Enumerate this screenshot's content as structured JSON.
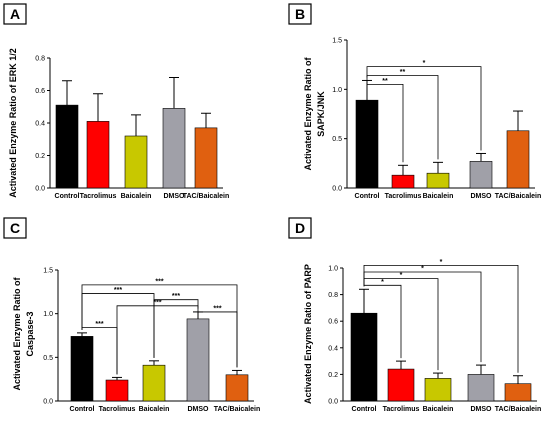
{
  "chart_data": [
    {
      "panel": "A",
      "type": "bar",
      "categories": [
        "Control",
        "Tacrolimus",
        "Baicalein",
        "DMSO",
        "TAC/Baicalein"
      ],
      "values": [
        0.51,
        0.41,
        0.32,
        0.49,
        0.37
      ],
      "errors": [
        0.15,
        0.17,
        0.13,
        0.19,
        0.09
      ],
      "colors": [
        "#000000",
        "#ff0000",
        "#c8c800",
        "#a0a0a8",
        "#e06010"
      ],
      "ylabel_lines": [
        "Activated Enzyme Ratio of ERK 1/2"
      ],
      "ylim": [
        0,
        0.8
      ],
      "yticks": [
        "0.0",
        "0.2",
        "0.4",
        "0.6",
        "0.8"
      ],
      "significance": []
    },
    {
      "panel": "B",
      "type": "bar",
      "categories": [
        "Control",
        "Tacrolimus",
        "Baicalein",
        "DMSO",
        "TAC/Baicalein"
      ],
      "values": [
        0.89,
        0.13,
        0.15,
        0.27,
        0.58
      ],
      "errors": [
        0.2,
        0.1,
        0.11,
        0.08,
        0.2
      ],
      "colors": [
        "#000000",
        "#ff0000",
        "#c8c800",
        "#a0a0a8",
        "#e06010"
      ],
      "ylabel_lines": [
        "Activated Enzyme Ratio of",
        "SAPK/JNK"
      ],
      "ylim": [
        0,
        1.5
      ],
      "yticks": [
        "0.0",
        "0.5",
        "1.0",
        "1.5"
      ],
      "significance": [
        {
          "from": 0,
          "to": 1,
          "label": "**",
          "level": 1.05
        },
        {
          "from": 0,
          "to": 2,
          "label": "**",
          "level": 1.14
        },
        {
          "from": 0,
          "to": 3,
          "label": "*",
          "level": 1.23
        }
      ]
    },
    {
      "panel": "C",
      "type": "bar",
      "categories": [
        "Control",
        "Tacrolimus",
        "Baicalein",
        "DMSO",
        "TAC/Baicalein"
      ],
      "values": [
        0.74,
        0.24,
        0.41,
        0.94,
        0.3
      ],
      "errors": [
        0.04,
        0.03,
        0.05,
        0.08,
        0.05
      ],
      "colors": [
        "#000000",
        "#ff0000",
        "#c8c800",
        "#a0a0a8",
        "#e06010"
      ],
      "ylabel_lines": [
        "Activated Enzyme Ratio of",
        "Caspase-3"
      ],
      "ylim": [
        0,
        1.5
      ],
      "yticks": [
        "0.0",
        "0.5",
        "1.0",
        "1.5"
      ],
      "significance": [
        {
          "from": 0,
          "to": 1,
          "label": "***",
          "level": 0.84
        },
        {
          "from": 3,
          "to": 4,
          "label": "***",
          "level": 1.02
        },
        {
          "from": 1,
          "to": 3,
          "label": "***",
          "level": 1.09
        },
        {
          "from": 2,
          "to": 3,
          "label": "***",
          "level": 1.16
        },
        {
          "from": 0,
          "to": 2,
          "label": "***",
          "level": 1.23
        },
        {
          "from": 0,
          "to": 4,
          "label": "***",
          "level": 1.33
        }
      ]
    },
    {
      "panel": "D",
      "type": "bar",
      "categories": [
        "Control",
        "Tacrolimus",
        "Baicalein",
        "DMSO",
        "TAC/Baicalein"
      ],
      "values": [
        0.66,
        0.24,
        0.17,
        0.2,
        0.13
      ],
      "errors": [
        0.18,
        0.06,
        0.04,
        0.07,
        0.06
      ],
      "colors": [
        "#000000",
        "#ff0000",
        "#c8c800",
        "#a0a0a8",
        "#e06010"
      ],
      "ylabel_lines": [
        "Activated Enzyme Ratio of PARP"
      ],
      "ylim": [
        0,
        1.0
      ],
      "yticks": [
        "0.0",
        "0.2",
        "0.4",
        "0.6",
        "0.8",
        "1.0"
      ],
      "significance": [
        {
          "from": 0,
          "to": 1,
          "label": "*",
          "level": 0.87
        },
        {
          "from": 0,
          "to": 2,
          "label": "*",
          "level": 0.92
        },
        {
          "from": 0,
          "to": 3,
          "label": "*",
          "level": 0.97
        },
        {
          "from": 0,
          "to": 4,
          "label": "*",
          "level": 1.02
        }
      ]
    }
  ]
}
